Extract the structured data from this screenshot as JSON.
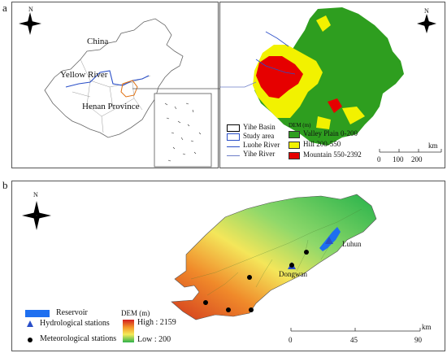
{
  "panel_a": {
    "letter": "a",
    "north": "N",
    "labels": {
      "china": "China",
      "yellow_river": "Yellow River",
      "henan": "Henan Province"
    },
    "legend_left": [
      {
        "label": "Yihe Basin"
      },
      {
        "label": "Study area"
      },
      {
        "label": "Luohe River"
      },
      {
        "label": "Yihe River"
      }
    ],
    "dem_title": "DEM (m)",
    "legend_right": [
      {
        "label": "Valley Plain  0-200",
        "color": "#2e9e1f"
      },
      {
        "label": "Hill 200-550",
        "color": "#f2f200"
      },
      {
        "label": "Mountain 550-2392",
        "color": "#e60000"
      }
    ],
    "scale": {
      "ticks": [
        "0",
        "100",
        "200"
      ],
      "unit": "km"
    }
  },
  "panel_b": {
    "letter": "b",
    "north": "N",
    "stations": {
      "luhun": "Luhun",
      "dongwan": "Dongwan"
    },
    "legend": [
      {
        "label": "Reservoir"
      },
      {
        "label": "Hydrological stations"
      },
      {
        "label": "Meteorological stations"
      }
    ],
    "dem_title": "DEM (m)",
    "dem_high": "High : 2159",
    "dem_low": "Low : 200",
    "scale": {
      "ticks": [
        "0",
        "45",
        "90"
      ],
      "unit": "km"
    }
  },
  "colors": {
    "plain": "#2e9e1f",
    "hill": "#f2f200",
    "mountain": "#e60000",
    "reservoir": "#1e6ff0",
    "hydro": "#2a4fc8"
  }
}
